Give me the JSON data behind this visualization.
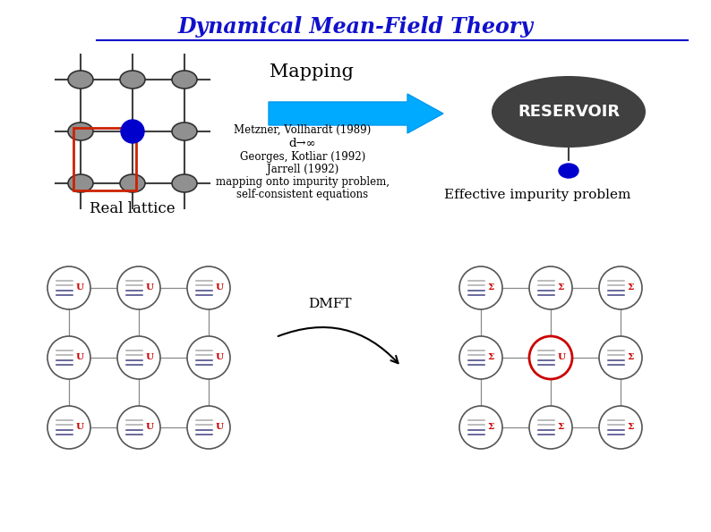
{
  "title": "Dynamical Mean-Field Theory",
  "title_color": "#1111cc",
  "bg_color": "#ffffff",
  "mapping_text": "Mapping",
  "reservoir_text": "RESERVOIR",
  "reservoir_bg": "#404040",
  "reservoir_text_color": "#ffffff",
  "real_lattice_text": "Real lattice",
  "arrow_color": "#00aaff",
  "metzner_text": "Metzner, Vollhardt (1989)",
  "d_inf_text": "d→∞",
  "georges_text": "Georges, Kotliar (1992)",
  "jarrell_text": "Jarrell (1992)",
  "mapping_imp_text": "mapping onto impurity problem,",
  "self_consistent_text": "self-consistent equations",
  "effective_text": "Effective impurity problem",
  "dmft_text": "DMFT",
  "lattice_center_color": "#0000cc",
  "lattice_line_color": "#404040",
  "rect_color": "#cc2200",
  "U_color": "#cc0000",
  "Sigma_color": "#cc0000",
  "line_colors_dark": "#404080",
  "line_colors_light": "#aaaaaa",
  "underline_color": "#1111cc"
}
